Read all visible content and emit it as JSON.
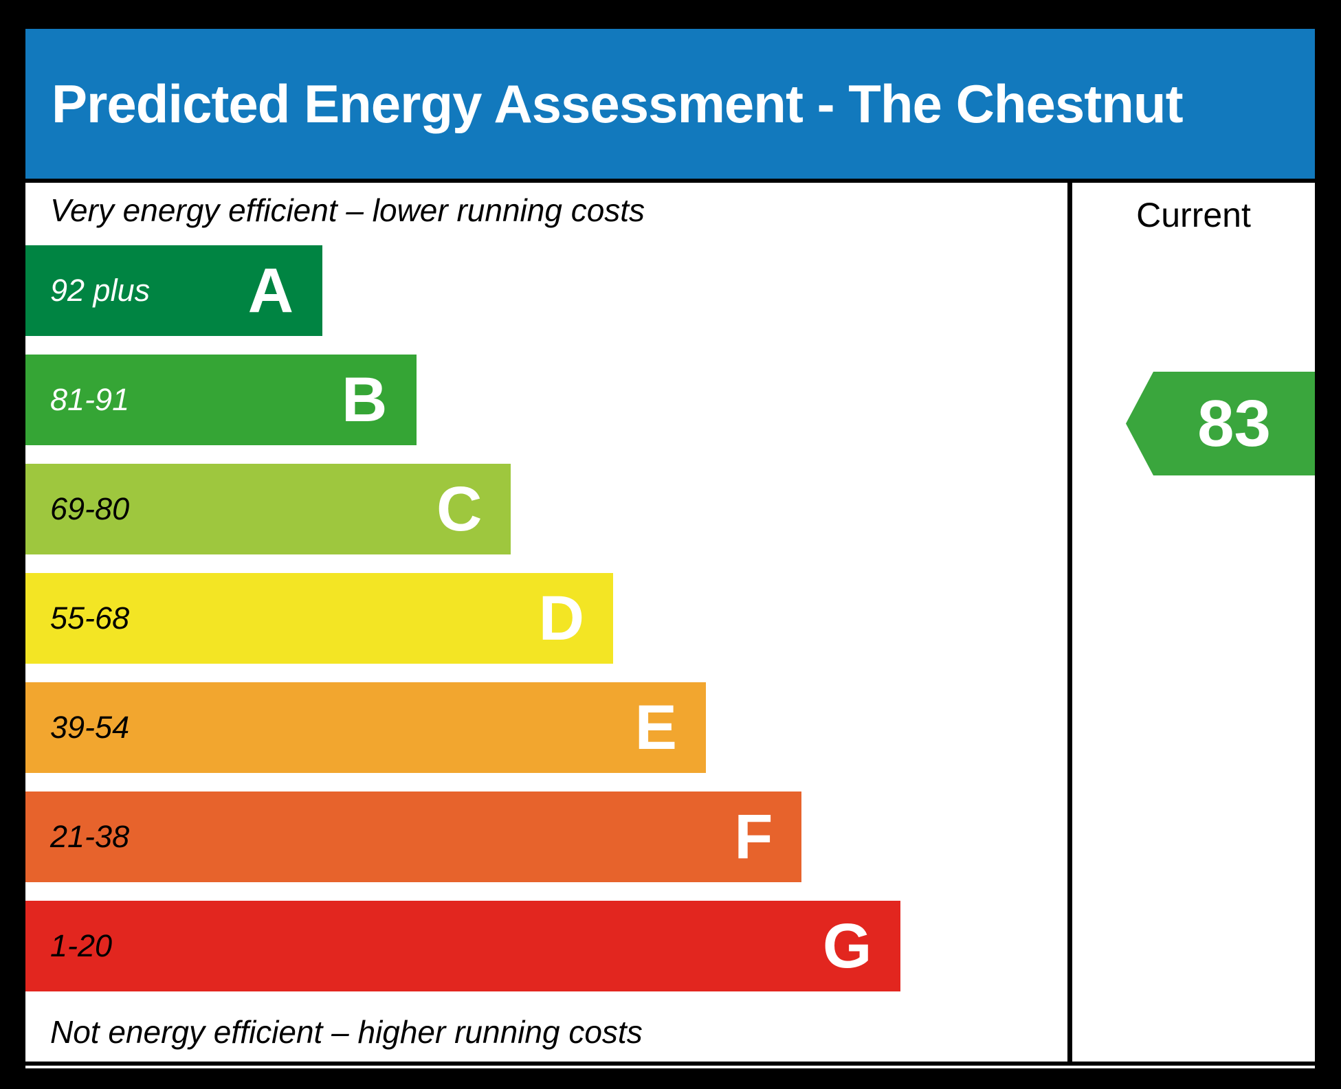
{
  "header": {
    "title": "Predicted Energy Assessment - The Chestnut",
    "bg_color": "#1279BD",
    "text_color": "#ffffff"
  },
  "ratings_panel": {
    "top_note": "Very energy efficient – lower running costs",
    "bottom_note": "Not energy efficient – higher running costs"
  },
  "current_panel": {
    "label": "Current",
    "value": "83",
    "arrow_color": "#3AA63D",
    "value_color": "#ffffff"
  },
  "chart_data": {
    "type": "bar",
    "orientation": "horizontal",
    "title": "Predicted Energy Assessment - The Chestnut",
    "categories": [
      "A",
      "B",
      "C",
      "D",
      "E",
      "F",
      "G"
    ],
    "bands": [
      {
        "letter": "A",
        "range": "92 plus",
        "min": 92,
        "max": 100,
        "color": "#008442",
        "range_text_color": "#ffffff",
        "width_pct": 28.5
      },
      {
        "letter": "B",
        "range": "81-91",
        "min": 81,
        "max": 91,
        "color": "#35A535",
        "range_text_color": "#ffffff",
        "width_pct": 37.5
      },
      {
        "letter": "C",
        "range": "69-80",
        "min": 69,
        "max": 80,
        "color": "#9EC73E",
        "range_text_color": "#000000",
        "width_pct": 46.6
      },
      {
        "letter": "D",
        "range": "55-68",
        "min": 55,
        "max": 68,
        "color": "#F3E524",
        "range_text_color": "#000000",
        "width_pct": 56.4
      },
      {
        "letter": "E",
        "range": "39-54",
        "min": 39,
        "max": 54,
        "color": "#F2A62F",
        "range_text_color": "#000000",
        "width_pct": 65.3
      },
      {
        "letter": "F",
        "range": "21-38",
        "min": 21,
        "max": 38,
        "color": "#E7632C",
        "range_text_color": "#000000",
        "width_pct": 74.5
      },
      {
        "letter": "G",
        "range": "1-20",
        "min": 1,
        "max": 20,
        "color": "#E2261F",
        "range_text_color": "#000000",
        "width_pct": 84.0
      }
    ],
    "current": {
      "value": 83,
      "band": "B"
    },
    "annotations": {
      "top": "Very energy efficient – lower running costs",
      "bottom": "Not energy efficient – higher running costs",
      "column_header": "Current"
    }
  }
}
